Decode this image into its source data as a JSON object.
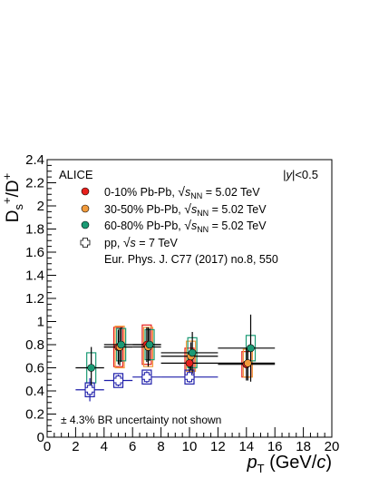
{
  "chart_data": {
    "type": "scatter",
    "experiment_label": "ALICE",
    "rapidity_label": "|y|<0.5",
    "ylabel": "D_s^+/D^+",
    "xlabel": "p_T (GeV/c)",
    "xlim": [
      0,
      20
    ],
    "ylim": [
      0,
      2.4
    ],
    "x_ticks": [
      "0",
      "2",
      "4",
      "6",
      "8",
      "10",
      "12",
      "14",
      "16",
      "18",
      "20"
    ],
    "y_ticks": [
      "0",
      "0.2",
      "0.4",
      "0.6",
      "0.8",
      "1",
      "1.2",
      "1.4",
      "1.6",
      "1.8",
      "2",
      "2.2",
      "2.4"
    ],
    "note": "± 4.3% BR uncertainty not shown",
    "reference": "Eur. Phys. J. C77 (2017) no.8, 550",
    "colors": {
      "0-10": "#e8201d",
      "30-50": "#f29b3c",
      "60-80": "#1a9a74",
      "pp": "#1e1eaa"
    },
    "series": [
      {
        "key": "0-10",
        "name": "0-10% Pb-Pb, √s_NN = 5.02 TeV",
        "marker": "filled-circle",
        "points": [
          {
            "x": 5.0,
            "xlo": 4,
            "xhi": 6,
            "y": 0.78,
            "stat": 0.15,
            "sys": 0.17
          },
          {
            "x": 7.0,
            "xlo": 6,
            "xhi": 8,
            "y": 0.8,
            "stat": 0.15,
            "sys": 0.17
          },
          {
            "x": 10.0,
            "xlo": 8,
            "xhi": 12,
            "y": 0.64,
            "stat": 0.1,
            "sys": 0.13
          },
          {
            "x": 14.0,
            "xlo": 12,
            "xhi": 16,
            "y": 0.63,
            "stat": 0.14,
            "sys": 0.11
          }
        ]
      },
      {
        "key": "30-50",
        "name": "30-50% Pb-Pb, √s_NN = 5.02 TeV",
        "marker": "filled-circle",
        "points": [
          {
            "x": 5.1,
            "xlo": 4,
            "xhi": 6,
            "y": 0.78,
            "stat": 0.16,
            "sys": 0.18
          },
          {
            "x": 7.1,
            "xlo": 6,
            "xhi": 8,
            "y": 0.78,
            "stat": 0.17,
            "sys": 0.17
          },
          {
            "x": 10.1,
            "xlo": 8,
            "xhi": 12,
            "y": 0.7,
            "stat": 0.12,
            "sys": 0.13
          },
          {
            "x": 14.1,
            "xlo": 12,
            "xhi": 16,
            "y": 0.64,
            "stat": 0.15,
            "sys": 0.12
          }
        ]
      },
      {
        "key": "60-80",
        "name": "60-80% Pb-Pb, √s_NN = 5.02 TeV",
        "marker": "filled-circle",
        "points": [
          {
            "x": 3.1,
            "xlo": 2,
            "xhi": 4,
            "y": 0.6,
            "stat": 0.18,
            "sys": 0.13
          },
          {
            "x": 5.2,
            "xlo": 4,
            "xhi": 6,
            "y": 0.8,
            "stat": 0.15,
            "sys": 0.14
          },
          {
            "x": 7.2,
            "xlo": 6,
            "xhi": 8,
            "y": 0.8,
            "stat": 0.14,
            "sys": 0.13
          },
          {
            "x": 10.2,
            "xlo": 8,
            "xhi": 12,
            "y": 0.73,
            "stat": 0.18,
            "sys": 0.13
          },
          {
            "x": 14.3,
            "xlo": 12,
            "xhi": 16,
            "y": 0.77,
            "stat": 0.29,
            "sys": 0.11
          }
        ]
      },
      {
        "key": "pp",
        "name": "pp, √s = 7 TeV",
        "marker": "open-cross",
        "points": [
          {
            "x": 3.0,
            "xlo": 2,
            "xhi": 4,
            "y": 0.41,
            "stat": 0.1,
            "sys": 0.06
          },
          {
            "x": 5.0,
            "xlo": 4,
            "xhi": 6,
            "y": 0.49,
            "stat": 0.05,
            "sys": 0.06
          },
          {
            "x": 7.0,
            "xlo": 6,
            "xhi": 8,
            "y": 0.52,
            "stat": 0.05,
            "sys": 0.06
          },
          {
            "x": 10.0,
            "xlo": 8,
            "xhi": 12,
            "y": 0.52,
            "stat": 0.05,
            "sys": 0.06
          }
        ]
      }
    ]
  }
}
